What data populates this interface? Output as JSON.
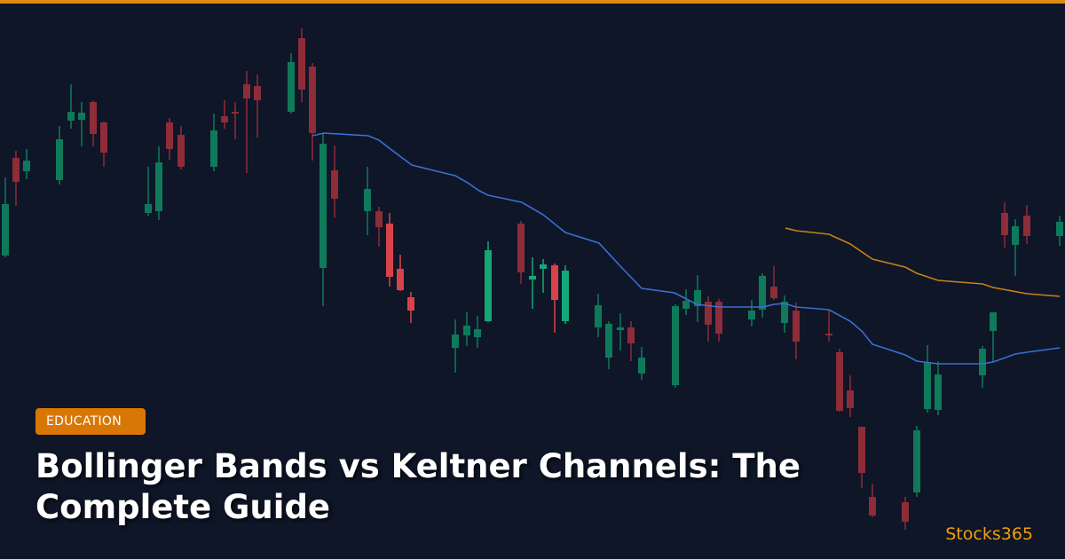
{
  "badge": "EDUCATION",
  "title": "Bollinger Bands vs Keltner Channels: The Complete Guide",
  "brand": "Stocks365"
}
